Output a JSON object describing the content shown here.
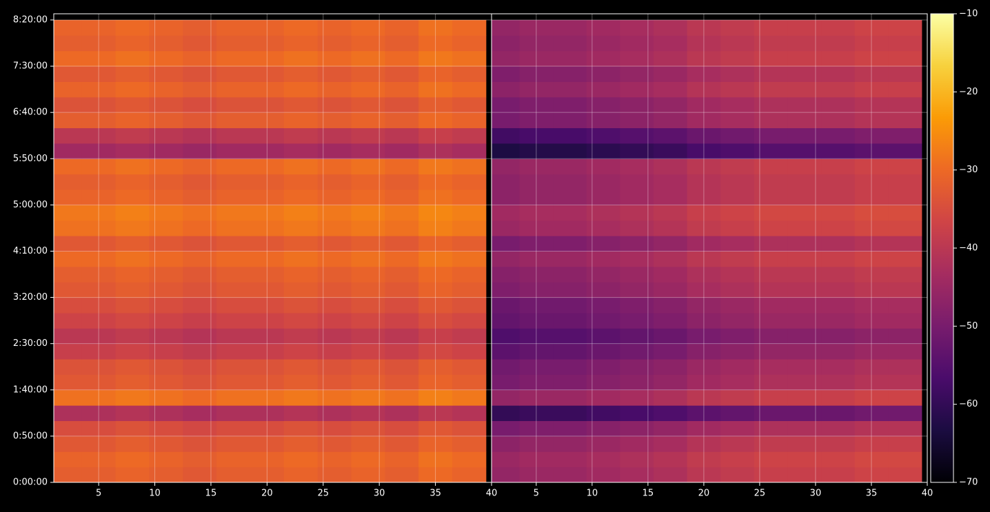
{
  "chart_data": [
    {
      "type": "heatmap",
      "grid": true,
      "colormap": "inferno",
      "xlim": [
        1,
        40
      ],
      "xticks": [
        5,
        10,
        15,
        20,
        25,
        30,
        35,
        40
      ],
      "ylim": [
        0,
        30400
      ],
      "yticks": [
        {
          "value": 0,
          "label": "0:00:00"
        },
        {
          "value": 3000,
          "label": "0:50:00"
        },
        {
          "value": 6000,
          "label": "1:40:00"
        },
        {
          "value": 9000,
          "label": "2:30:00"
        },
        {
          "value": 12000,
          "label": "3:20:00"
        },
        {
          "value": 15000,
          "label": "4:10:00"
        },
        {
          "value": 18000,
          "label": "5:00:00"
        },
        {
          "value": 21000,
          "label": "5:50:00"
        },
        {
          "value": 24000,
          "label": "6:40:00"
        },
        {
          "value": 27000,
          "label": "7:30:00"
        },
        {
          "value": 30000,
          "label": "8:20:00"
        }
      ],
      "x": [
        2,
        5,
        8,
        11,
        14,
        17,
        20,
        23,
        26,
        29,
        32,
        35,
        38
      ],
      "y": [
        500,
        1500,
        2500,
        3500,
        4500,
        5500,
        6500,
        7500,
        8500,
        9500,
        10500,
        11500,
        12500,
        13500,
        14500,
        15500,
        16500,
        17500,
        18500,
        19500,
        20500,
        21500,
        22500,
        23500,
        24500,
        25500,
        26500,
        27500,
        28500,
        29500
      ],
      "values": [
        [
          -32,
          -32,
          -31,
          -32,
          -33,
          -32,
          -32,
          -31,
          -32,
          -31,
          -32,
          -30,
          -31
        ],
        [
          -31,
          -31,
          -30,
          -31,
          -32,
          -31,
          -31,
          -30,
          -31,
          -30,
          -31,
          -29,
          -30
        ],
        [
          -33,
          -33,
          -32,
          -33,
          -34,
          -33,
          -33,
          -32,
          -33,
          -32,
          -33,
          -31,
          -32
        ],
        [
          -35,
          -35,
          -34,
          -35,
          -36,
          -35,
          -35,
          -34,
          -35,
          -34,
          -35,
          -33,
          -34
        ],
        [
          -42,
          -42,
          -41,
          -42,
          -43,
          -42,
          -42,
          -41,
          -42,
          -41,
          -42,
          -40,
          -41
        ],
        [
          -29,
          -29,
          -28,
          -29,
          -30,
          -29,
          -29,
          -28,
          -29,
          -28,
          -29,
          -27,
          -28
        ],
        [
          -33,
          -33,
          -32,
          -33,
          -34,
          -33,
          -33,
          -32,
          -33,
          -32,
          -33,
          -31,
          -32
        ],
        [
          -34,
          -34,
          -33,
          -34,
          -35,
          -34,
          -34,
          -33,
          -34,
          -33,
          -34,
          -32,
          -33
        ],
        [
          -38,
          -38,
          -37,
          -38,
          -39,
          -38,
          -38,
          -37,
          -38,
          -37,
          -38,
          -36,
          -37
        ],
        [
          -40,
          -40,
          -39,
          -40,
          -41,
          -40,
          -40,
          -39,
          -40,
          -39,
          -40,
          -38,
          -39
        ],
        [
          -37,
          -37,
          -36,
          -37,
          -38,
          -37,
          -37,
          -36,
          -37,
          -36,
          -37,
          -35,
          -36
        ],
        [
          -35,
          -35,
          -34,
          -35,
          -36,
          -35,
          -35,
          -34,
          -35,
          -34,
          -35,
          -33,
          -34
        ],
        [
          -33,
          -33,
          -32,
          -33,
          -34,
          -33,
          -33,
          -32,
          -33,
          -32,
          -33,
          -31,
          -32
        ],
        [
          -32,
          -32,
          -31,
          -32,
          -33,
          -32,
          -32,
          -31,
          -32,
          -31,
          -32,
          -30,
          -31
        ],
        [
          -30,
          -30,
          -29,
          -30,
          -31,
          -30,
          -30,
          -29,
          -30,
          -29,
          -30,
          -28,
          -29
        ],
        [
          -33,
          -33,
          -32,
          -33,
          -34,
          -33,
          -33,
          -32,
          -33,
          -32,
          -33,
          -31,
          -32
        ],
        [
          -29,
          -29,
          -28,
          -29,
          -30,
          -29,
          -29,
          -28,
          -29,
          -28,
          -29,
          -27,
          -28
        ],
        [
          -28,
          -28,
          -27,
          -28,
          -29,
          -28,
          -28,
          -27,
          -28,
          -27,
          -28,
          -26,
          -27
        ],
        [
          -31,
          -31,
          -30,
          -31,
          -32,
          -31,
          -31,
          -30,
          -31,
          -30,
          -31,
          -29,
          -30
        ],
        [
          -32,
          -32,
          -31,
          -32,
          -33,
          -32,
          -32,
          -31,
          -32,
          -31,
          -32,
          -30,
          -31
        ],
        [
          -30,
          -30,
          -29,
          -30,
          -31,
          -30,
          -30,
          -29,
          -30,
          -29,
          -30,
          -28,
          -29
        ],
        [
          -44,
          -44,
          -43,
          -44,
          -45,
          -44,
          -44,
          -43,
          -44,
          -43,
          -44,
          -42,
          -43
        ],
        [
          -40,
          -40,
          -39,
          -40,
          -41,
          -40,
          -40,
          -39,
          -40,
          -39,
          -40,
          -38,
          -39
        ],
        [
          -32,
          -32,
          -31,
          -32,
          -33,
          -32,
          -32,
          -31,
          -32,
          -31,
          -32,
          -30,
          -31
        ],
        [
          -34,
          -34,
          -33,
          -34,
          -35,
          -34,
          -34,
          -33,
          -34,
          -33,
          -34,
          -32,
          -33
        ],
        [
          -31,
          -31,
          -30,
          -31,
          -32,
          -31,
          -31,
          -30,
          -31,
          -30,
          -31,
          -29,
          -30
        ],
        [
          -33,
          -33,
          -32,
          -33,
          -34,
          -33,
          -33,
          -32,
          -33,
          -32,
          -33,
          -31,
          -32
        ],
        [
          -30,
          -30,
          -29,
          -30,
          -31,
          -30,
          -30,
          -29,
          -30,
          -29,
          -30,
          -28,
          -29
        ],
        [
          -32,
          -32,
          -31,
          -32,
          -33,
          -32,
          -32,
          -31,
          -32,
          -31,
          -32,
          -30,
          -31
        ],
        [
          -31,
          -31,
          -30,
          -31,
          -32,
          -31,
          -31,
          -30,
          -31,
          -30,
          -31,
          -29,
          -30
        ]
      ]
    },
    {
      "type": "heatmap",
      "grid": true,
      "colormap": "inferno",
      "xlim": [
        1,
        40
      ],
      "xticks": [
        5,
        10,
        15,
        20,
        25,
        30,
        35,
        40
      ],
      "ylim": [
        0,
        30400
      ],
      "x": [
        2,
        5,
        8,
        11,
        14,
        17,
        20,
        23,
        26,
        29,
        32,
        35,
        38
      ],
      "y": [
        500,
        1500,
        2500,
        3500,
        4500,
        5500,
        6500,
        7500,
        8500,
        9500,
        10500,
        11500,
        12500,
        13500,
        14500,
        15500,
        16500,
        17500,
        18500,
        19500,
        20500,
        21500,
        22500,
        23500,
        24500,
        25500,
        26500,
        27500,
        28500,
        29500
      ],
      "values": [
        [
          -46,
          -45,
          -45,
          -44,
          -43,
          -42,
          -40,
          -39,
          -38,
          -38,
          -38,
          -37,
          -37
        ],
        [
          -45,
          -44,
          -44,
          -43,
          -42,
          -41,
          -39,
          -38,
          -37,
          -37,
          -37,
          -36,
          -36
        ],
        [
          -47,
          -46,
          -46,
          -45,
          -44,
          -43,
          -41,
          -40,
          -39,
          -39,
          -39,
          -38,
          -38
        ],
        [
          -50,
          -49,
          -49,
          -48,
          -47,
          -46,
          -44,
          -43,
          -42,
          -42,
          -42,
          -41,
          -41
        ],
        [
          -60,
          -59,
          -59,
          -58,
          -57,
          -56,
          -54,
          -53,
          -52,
          -52,
          -52,
          -51,
          -51
        ],
        [
          -46,
          -45,
          -45,
          -44,
          -43,
          -42,
          -40,
          -39,
          -38,
          -38,
          -38,
          -37,
          -37
        ],
        [
          -50,
          -49,
          -49,
          -48,
          -47,
          -46,
          -44,
          -43,
          -42,
          -42,
          -42,
          -41,
          -41
        ],
        [
          -51,
          -50,
          -50,
          -49,
          -48,
          -47,
          -45,
          -44,
          -43,
          -43,
          -43,
          -42,
          -42
        ],
        [
          -54,
          -53,
          -53,
          -52,
          -51,
          -50,
          -48,
          -47,
          -46,
          -46,
          -46,
          -45,
          -45
        ],
        [
          -56,
          -55,
          -55,
          -54,
          -53,
          -52,
          -50,
          -49,
          -48,
          -48,
          -48,
          -47,
          -47
        ],
        [
          -53,
          -52,
          -52,
          -51,
          -50,
          -49,
          -47,
          -46,
          -45,
          -45,
          -45,
          -44,
          -44
        ],
        [
          -52,
          -51,
          -51,
          -50,
          -49,
          -48,
          -46,
          -45,
          -44,
          -44,
          -44,
          -43,
          -43
        ],
        [
          -49,
          -48,
          -48,
          -47,
          -46,
          -45,
          -43,
          -42,
          -41,
          -41,
          -41,
          -40,
          -40
        ],
        [
          -48,
          -47,
          -47,
          -46,
          -45,
          -44,
          -42,
          -41,
          -40,
          -40,
          -40,
          -39,
          -39
        ],
        [
          -46,
          -45,
          -45,
          -44,
          -43,
          -42,
          -40,
          -39,
          -38,
          -38,
          -38,
          -37,
          -37
        ],
        [
          -50,
          -49,
          -49,
          -48,
          -47,
          -46,
          -44,
          -43,
          -42,
          -42,
          -42,
          -41,
          -41
        ],
        [
          -45,
          -44,
          -44,
          -43,
          -42,
          -41,
          -39,
          -38,
          -37,
          -37,
          -37,
          -36,
          -36
        ],
        [
          -44,
          -43,
          -43,
          -42,
          -41,
          -40,
          -38,
          -37,
          -36,
          -36,
          -36,
          -35,
          -35
        ],
        [
          -47,
          -46,
          -46,
          -45,
          -44,
          -43,
          -41,
          -40,
          -39,
          -39,
          -39,
          -38,
          -38
        ],
        [
          -47,
          -46,
          -46,
          -45,
          -44,
          -43,
          -41,
          -40,
          -39,
          -39,
          -39,
          -38,
          -38
        ],
        [
          -46,
          -45,
          -45,
          -44,
          -43,
          -42,
          -40,
          -39,
          -38,
          -38,
          -38,
          -37,
          -37
        ],
        [
          -63,
          -62,
          -62,
          -61,
          -60,
          -59,
          -57,
          -56,
          -55,
          -55,
          -55,
          -54,
          -54
        ],
        [
          -58,
          -57,
          -57,
          -56,
          -55,
          -54,
          -52,
          -51,
          -50,
          -50,
          -50,
          -49,
          -49
        ],
        [
          -50,
          -49,
          -49,
          -48,
          -47,
          -46,
          -44,
          -43,
          -42,
          -42,
          -42,
          -41,
          -41
        ],
        [
          -50,
          -49,
          -49,
          -48,
          -47,
          -46,
          -44,
          -43,
          -42,
          -42,
          -42,
          -41,
          -41
        ],
        [
          -47,
          -46,
          -46,
          -45,
          -44,
          -43,
          -41,
          -40,
          -39,
          -39,
          -39,
          -38,
          -38
        ],
        [
          -49,
          -48,
          -48,
          -47,
          -46,
          -45,
          -43,
          -42,
          -41,
          -41,
          -41,
          -40,
          -40
        ],
        [
          -46,
          -45,
          -45,
          -44,
          -43,
          -42,
          -40,
          -39,
          -38,
          -38,
          -38,
          -37,
          -37
        ],
        [
          -47,
          -46,
          -46,
          -45,
          -44,
          -43,
          -41,
          -40,
          -39,
          -39,
          -39,
          -38,
          -38
        ],
        [
          -46,
          -45,
          -45,
          -44,
          -43,
          -42,
          -40,
          -39,
          -38,
          -38,
          -38,
          -37,
          -37
        ]
      ],
      "colorbar": {
        "lim": [
          -70,
          -10
        ],
        "ticks": [
          {
            "value": -70,
            "label": "−70"
          },
          {
            "value": -60,
            "label": "−60"
          },
          {
            "value": -50,
            "label": "−50"
          },
          {
            "value": -40,
            "label": "−40"
          },
          {
            "value": -30,
            "label": "−30"
          },
          {
            "value": -20,
            "label": "−20"
          },
          {
            "value": -10,
            "label": "−10"
          }
        ]
      }
    }
  ]
}
